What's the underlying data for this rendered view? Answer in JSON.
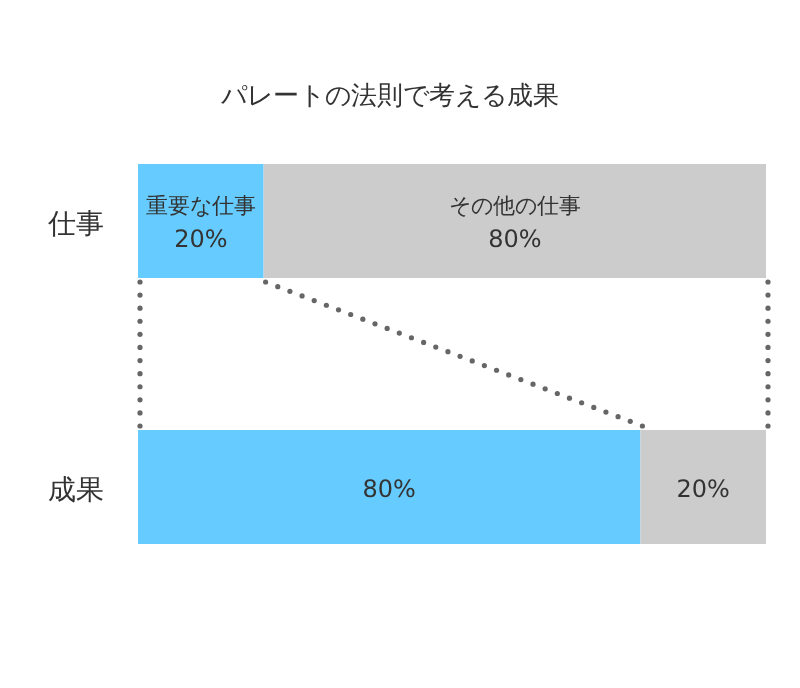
{
  "chart_data": {
    "type": "bar",
    "orientation": "horizontal",
    "stacked": true,
    "title": "パレートの法則で考える成果",
    "categories": [
      "仕事",
      "成果"
    ],
    "xlim": [
      0,
      100
    ],
    "series": [
      {
        "name": "重要な仕事",
        "color": "#66ccff",
        "values": [
          20,
          80
        ],
        "value_labels": [
          "20%",
          "80%"
        ]
      },
      {
        "name": "その他の仕事",
        "color": "#cccccc",
        "values": [
          80,
          20
        ],
        "value_labels": [
          "80%",
          "20%"
        ]
      }
    ],
    "legend": false
  }
}
